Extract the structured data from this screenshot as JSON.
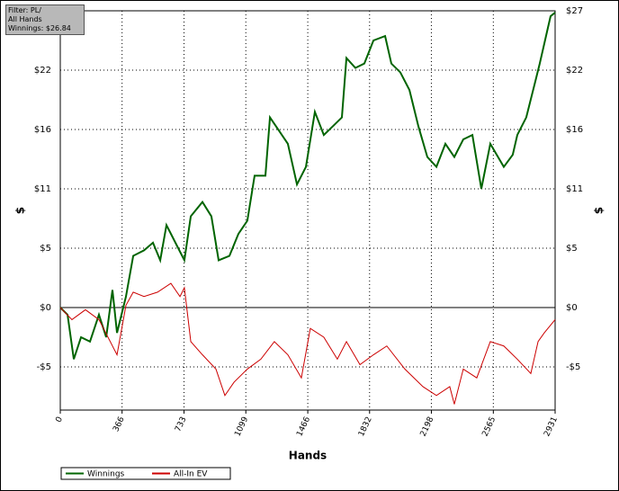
{
  "chart_data": {
    "type": "line",
    "info": [
      "Filter: PL/",
      "All Hands",
      "Winnings: $26.84"
    ],
    "xlabel": "Hands",
    "ylabel": "$",
    "xlim": [
      0,
      2931
    ],
    "xticks": [
      0,
      366,
      733,
      1099,
      1466,
      1832,
      2198,
      2565,
      2931
    ],
    "ylim": [
      -9.33,
      27
    ],
    "yticks": [
      {
        "value": -5.4,
        "label": "-$5"
      },
      {
        "value": 0,
        "label": "$0"
      },
      {
        "value": 5.4,
        "label": "$5"
      },
      {
        "value": 10.8,
        "label": "$11"
      },
      {
        "value": 16.2,
        "label": "$16"
      },
      {
        "value": 21.6,
        "label": "$22"
      },
      {
        "value": 27,
        "label": "$27"
      }
    ],
    "grid": true,
    "series": [
      {
        "name": "Winnings",
        "color": "#006400",
        "x": [
          0,
          43,
          80,
          123,
          176,
          229,
          272,
          309,
          336,
          389,
          432,
          496,
          549,
          592,
          629,
          682,
          735,
          773,
          842,
          895,
          938,
          1002,
          1055,
          1108,
          1151,
          1215,
          1242,
          1295,
          1348,
          1402,
          1455,
          1508,
          1561,
          1615,
          1668,
          1695,
          1748,
          1801,
          1855,
          1924,
          1961,
          2014,
          2068,
          2121,
          2174,
          2228,
          2281,
          2334,
          2387,
          2441,
          2494,
          2547,
          2627,
          2680,
          2707,
          2760,
          2814,
          2840,
          2883,
          2904,
          2931
        ],
        "values": [
          0,
          -0.65,
          -4.7,
          -2.7,
          -3.1,
          -0.65,
          -2.7,
          1.6,
          -2.3,
          1.0,
          4.7,
          5.2,
          5.9,
          4.3,
          7.5,
          5.9,
          4.3,
          8.3,
          9.6,
          8.3,
          4.3,
          4.7,
          6.7,
          7.9,
          12.0,
          12.0,
          17.3,
          16.1,
          14.9,
          11.2,
          12.8,
          17.8,
          15.7,
          16.5,
          17.3,
          22.7,
          21.8,
          22.2,
          24.3,
          24.7,
          22.2,
          21.4,
          19.8,
          16.5,
          13.7,
          12.8,
          14.9,
          13.7,
          15.3,
          15.7,
          10.8,
          14.9,
          12.8,
          13.9,
          15.7,
          17.3,
          20.6,
          22.2,
          25.1,
          26.5,
          26.84
        ]
      },
      {
        "name": "All-In EV",
        "color": "#cc0000",
        "x": [
          0,
          69,
          149,
          229,
          336,
          389,
          432,
          496,
          576,
          655,
          709,
          735,
          773,
          842,
          922,
          975,
          1029,
          1108,
          1188,
          1268,
          1348,
          1428,
          1481,
          1561,
          1641,
          1695,
          1775,
          1855,
          1934,
          2041,
          2148,
          2228,
          2307,
          2334,
          2387,
          2467,
          2547,
          2627,
          2707,
          2787,
          2830,
          2867,
          2931
        ],
        "values": [
          0,
          -1.1,
          -0.2,
          -1.1,
          -4.3,
          0.2,
          1.4,
          1.0,
          1.4,
          2.2,
          1.0,
          1.8,
          -3.1,
          -4.3,
          -5.6,
          -8.0,
          -6.8,
          -5.6,
          -4.7,
          -3.1,
          -4.3,
          -6.4,
          -1.9,
          -2.7,
          -4.7,
          -3.1,
          -5.2,
          -4.3,
          -3.5,
          -5.6,
          -7.2,
          -8.0,
          -7.2,
          -8.8,
          -5.6,
          -6.4,
          -3.1,
          -3.5,
          -4.7,
          -6.0,
          -3.1,
          -2.3,
          -1.1
        ]
      }
    ]
  }
}
